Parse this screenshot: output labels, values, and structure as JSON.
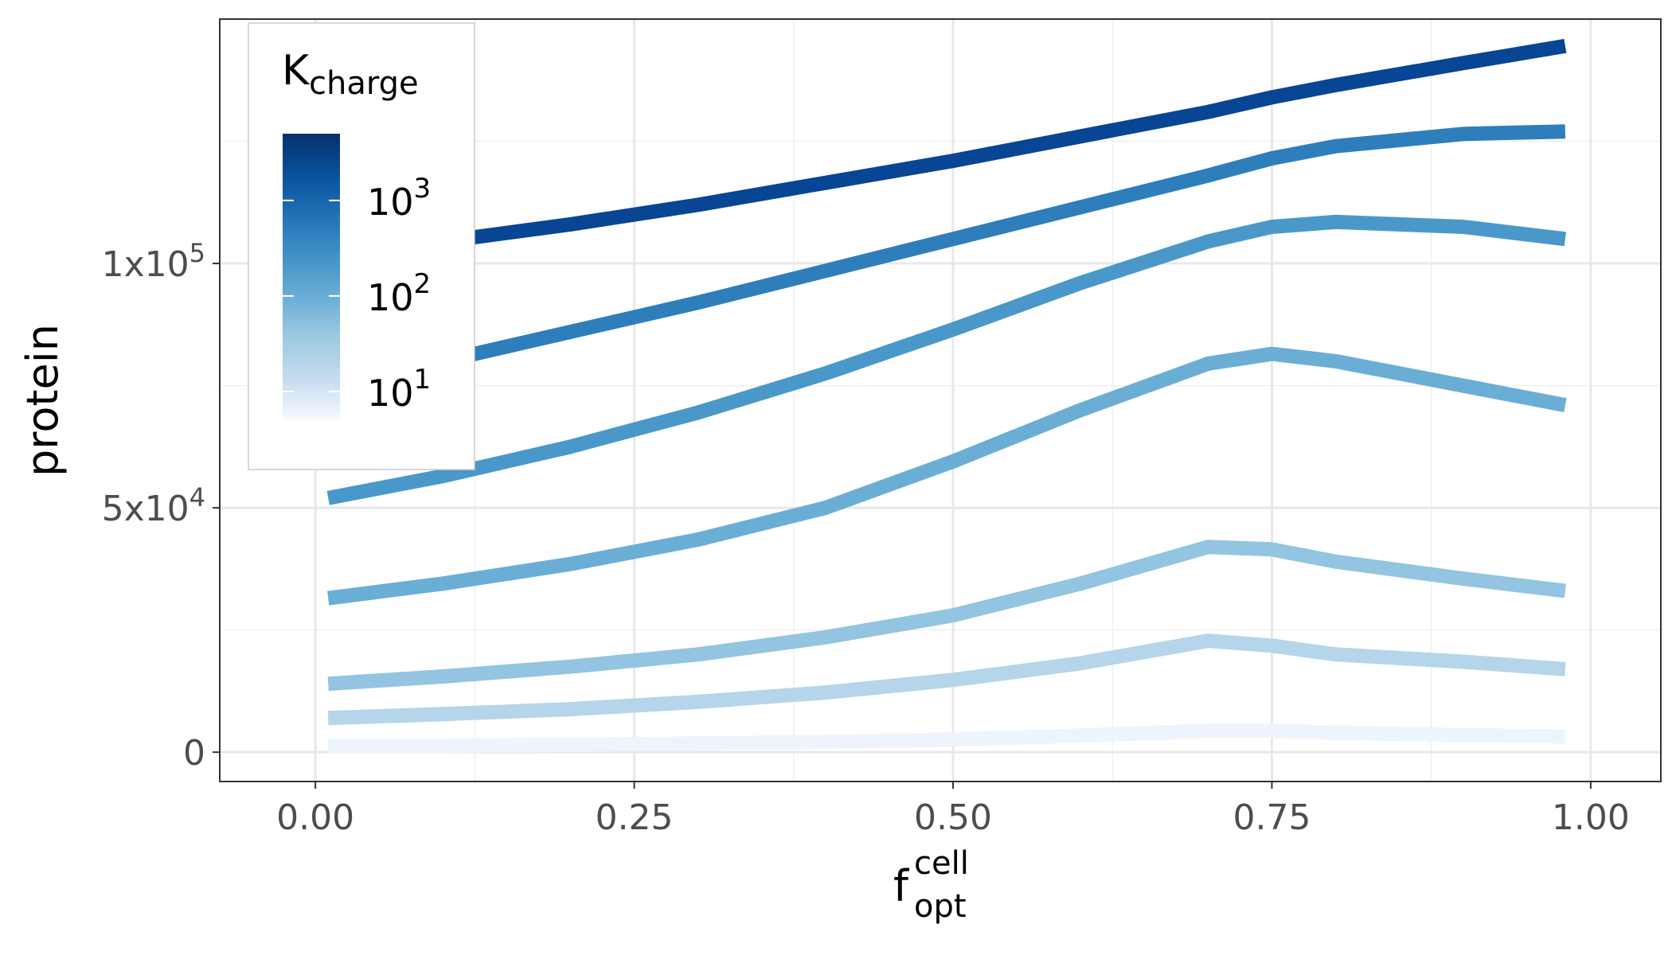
{
  "chart_data": {
    "type": "line",
    "xlabel": "f",
    "xlabel_sup": "cell",
    "xlabel_sub": "opt",
    "ylabel": "protein",
    "xlim": [
      -0.075,
      1.055
    ],
    "ylim": [
      -6000,
      150000
    ],
    "x_ticks": [
      0.0,
      0.25,
      0.5,
      0.75,
      1.0
    ],
    "x_tick_labels": [
      "0.00",
      "0.25",
      "0.50",
      "0.75",
      "1.00"
    ],
    "y_ticks": [
      0,
      50000,
      100000
    ],
    "y_tick_labels": [
      {
        "base": "0",
        "exp": ""
      },
      {
        "base": "5x10",
        "exp": "4"
      },
      {
        "base": "1x10",
        "exp": "5"
      }
    ],
    "grid": true,
    "legend": {
      "title": "K",
      "title_sub": "charge",
      "position": "top-left",
      "scale": "log",
      "range": [
        5,
        5000
      ],
      "labels": [
        {
          "value": 10,
          "base": "10",
          "exp": "1"
        },
        {
          "value": 100,
          "base": "10",
          "exp": "2"
        },
        {
          "value": 1000,
          "base": "10",
          "exp": "3"
        }
      ],
      "gradient": [
        "#f7fbff",
        "#c6dbef",
        "#9ecae1",
        "#6baed6",
        "#4292c6",
        "#2171b5",
        "#08519c",
        "#08306b"
      ]
    },
    "x": [
      0.01,
      0.1,
      0.2,
      0.3,
      0.4,
      0.5,
      0.6,
      0.7,
      0.75,
      0.8,
      0.9,
      0.98
    ],
    "series": [
      {
        "color": "#084594",
        "values": [
          101000,
          104500,
          108000,
          112000,
          116500,
          121000,
          126000,
          131000,
          134000,
          136500,
          141000,
          144500
        ]
      },
      {
        "color": "#2e7ebc",
        "values": [
          75000,
          80000,
          86000,
          92000,
          98500,
          105000,
          111500,
          118000,
          121500,
          124000,
          126500,
          127000
        ]
      },
      {
        "color": "#4a98c9",
        "values": [
          52000,
          56500,
          62500,
          69500,
          77500,
          86500,
          96000,
          104500,
          107500,
          108500,
          107500,
          105000
        ]
      },
      {
        "color": "#6aaed6",
        "values": [
          31500,
          34500,
          38500,
          43500,
          50000,
          59500,
          70000,
          79500,
          81500,
          80000,
          75000,
          71000
        ]
      },
      {
        "color": "#93c4e1",
        "values": [
          14000,
          15500,
          17500,
          20000,
          23500,
          28000,
          34500,
          42000,
          41500,
          39000,
          35500,
          33000
        ]
      },
      {
        "color": "#b4d5ea",
        "values": [
          7000,
          7800,
          8800,
          10300,
          12200,
          14800,
          18200,
          22800,
          21800,
          20000,
          18500,
          17000
        ]
      },
      {
        "color": "#edf4fc",
        "values": [
          1200,
          1300,
          1500,
          1800,
          2100,
          2600,
          3400,
          4400,
          4400,
          4000,
          3500,
          3200
        ]
      }
    ]
  }
}
